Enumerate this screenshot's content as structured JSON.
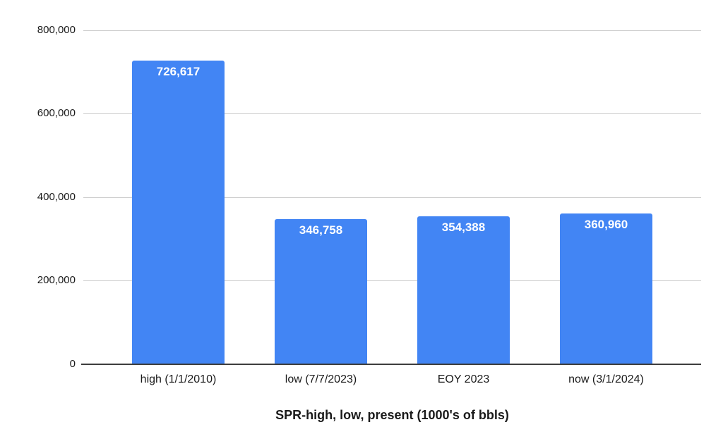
{
  "chart_data": {
    "type": "bar",
    "title": "SPR-high, low, present (1000's of bbls)",
    "xlabel": "",
    "ylabel": "",
    "categories": [
      "high (1/1/2010)",
      "low (7/7/2023)",
      "EOY 2023",
      "now (3/1/2024)"
    ],
    "values": [
      726617,
      346758,
      354388,
      360960
    ],
    "value_labels": [
      "726,617",
      "346,758",
      "354,388",
      "360,960"
    ],
    "y_ticks": [
      0,
      200000,
      400000,
      600000,
      800000
    ],
    "y_tick_labels": [
      "0",
      "200,000",
      "400,000",
      "600,000",
      "800,000"
    ],
    "ylim": [
      0,
      800000
    ],
    "grid": true,
    "legend_position": "none",
    "colors": {
      "bar": "#4285f4",
      "value_label": "#ffffff",
      "gridline": "#cccccc",
      "axis_line": "#3d3d3d",
      "tick_label": "#1a1a1a",
      "title": "#1a1a1a",
      "background": "#ffffff"
    }
  }
}
